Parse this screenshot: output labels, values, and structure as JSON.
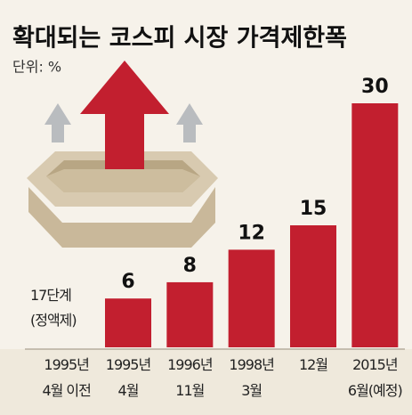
{
  "chart_data": {
    "type": "bar",
    "title": "확대되는 코스피 시장 가격제한폭",
    "subtitle": "단위: %",
    "categories": [
      "1995년\n4월 이전",
      "1995년\n4월",
      "1996년\n11월",
      "1998년\n3월",
      "12월",
      "2015년\n6월(예정)"
    ],
    "values": [
      null,
      6,
      8,
      12,
      15,
      30
    ],
    "annotation": "17단계\n(정액제)",
    "color": "#c21f2f",
    "ylim": [
      0,
      30
    ]
  }
}
